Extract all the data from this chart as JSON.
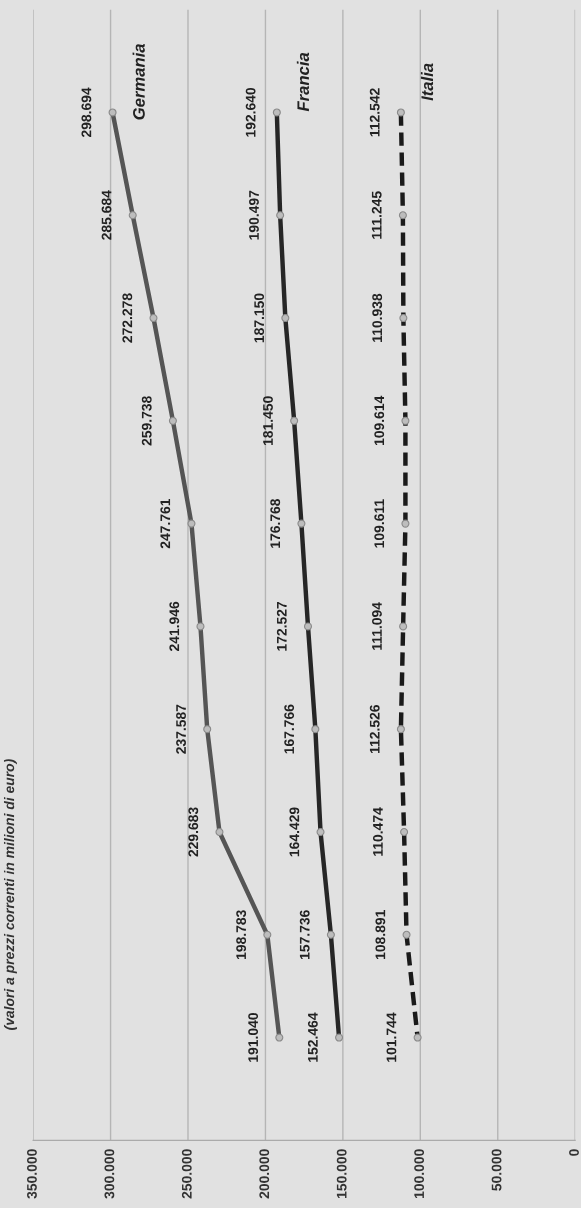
{
  "chart_data": {
    "type": "line",
    "orientation": "horizontal",
    "subtitle": "(valori a prezzi correnti in milioni di euro)",
    "categories": [
      null,
      null,
      null,
      null,
      null,
      null,
      null,
      null,
      null,
      null
    ],
    "series": [
      {
        "name": "Germania",
        "color": "#555555",
        "line_style": "solid",
        "values": [
          298694,
          285684,
          272278,
          259738,
          247761,
          241946,
          237587,
          229683,
          198783,
          191040
        ],
        "value_labels": [
          "298.694",
          "285.684",
          "272.278",
          "259.738",
          "247.761",
          "241.946",
          "237.587",
          "229.683",
          "198.783",
          "191.040"
        ]
      },
      {
        "name": "Francia",
        "color": "#262626",
        "line_style": "solid",
        "values": [
          192640,
          190497,
          187150,
          181450,
          176768,
          172527,
          167766,
          164429,
          157736,
          152464
        ],
        "value_labels": [
          "192.640",
          "190.497",
          "187.150",
          "181.450",
          "176.768",
          "172.527",
          "167.766",
          "164.429",
          "157.736",
          "152.464"
        ]
      },
      {
        "name": "Italia",
        "color": "#1a1a1a",
        "line_style": "dashed",
        "values": [
          112542,
          111245,
          110938,
          109614,
          109611,
          111094,
          112526,
          110474,
          108891,
          101744
        ],
        "value_labels": [
          "112.542",
          "111.245",
          "110.938",
          "109.614",
          "109.611",
          "111.094",
          "112.526",
          "110.474",
          "108.891",
          "101.744"
        ]
      }
    ],
    "xlim": [
      350000,
      0
    ],
    "xticks": [
      {
        "value": 350000,
        "label": "350.000"
      },
      {
        "value": 300000,
        "label": "300.000"
      },
      {
        "value": 250000,
        "label": "250.000"
      },
      {
        "value": 200000,
        "label": "200.000"
      },
      {
        "value": 150000,
        "label": "150.000"
      },
      {
        "value": 100000,
        "label": "100.000"
      },
      {
        "value": 50000,
        "label": "50.000"
      },
      0
    ],
    "grid": "x",
    "marker": "circle",
    "legend": false
  }
}
